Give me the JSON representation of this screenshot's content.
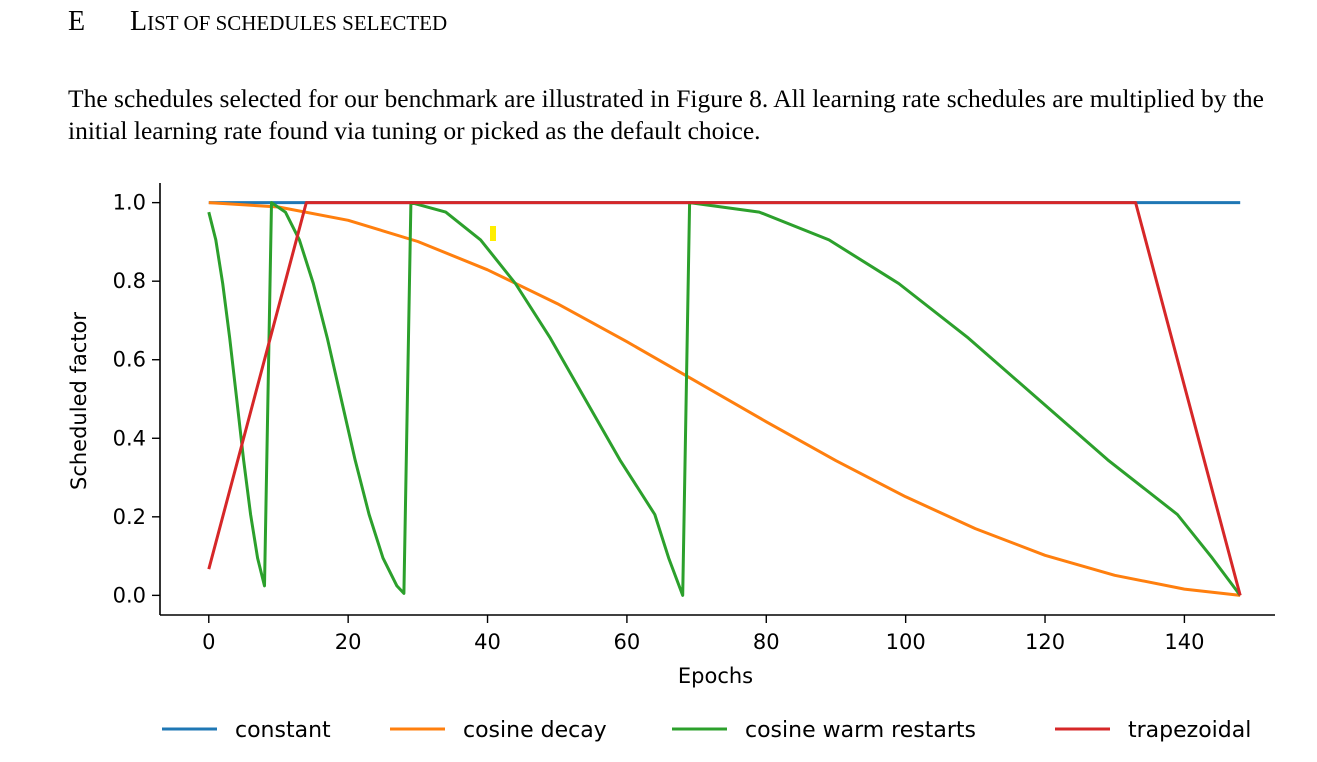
{
  "section": {
    "number": "E",
    "title_first": "L",
    "title_rest": "IST OF SCHEDULES SELECTED"
  },
  "paragraph": "The schedules selected for our benchmark are illustrated in Figure 8. All learning rate schedules are multiplied by the initial learning rate found via tuning or picked as the default choice.",
  "chart_data": {
    "type": "line",
    "xlabel": "Epochs",
    "ylabel": "Scheduled factor",
    "xlim": [
      -7,
      153
    ],
    "ylim": [
      -0.05,
      1.05
    ],
    "xticks": [
      0,
      20,
      40,
      60,
      80,
      100,
      120,
      140
    ],
    "yticks": [
      0.0,
      0.2,
      0.4,
      0.6,
      0.8,
      1.0
    ],
    "ytick_labels": [
      "0.0",
      "0.2",
      "0.4",
      "0.6",
      "0.8",
      "1.0"
    ],
    "grid": false,
    "legend_position": "bottom",
    "series": [
      {
        "name": "constant",
        "color": "#1f77b4",
        "points": [
          [
            0,
            1.0
          ],
          [
            148,
            1.0
          ]
        ]
      },
      {
        "name": "cosine decay",
        "color": "#ff7f0e",
        "points": [
          [
            0,
            1.0
          ],
          [
            10,
            0.989
          ],
          [
            20,
            0.955
          ],
          [
            30,
            0.901
          ],
          [
            40,
            0.829
          ],
          [
            50,
            0.743
          ],
          [
            60,
            0.646
          ],
          [
            70,
            0.544
          ],
          [
            80,
            0.442
          ],
          [
            90,
            0.343
          ],
          [
            100,
            0.251
          ],
          [
            110,
            0.17
          ],
          [
            120,
            0.102
          ],
          [
            130,
            0.051
          ],
          [
            140,
            0.016
          ],
          [
            148,
            0.0
          ]
        ]
      },
      {
        "name": "cosine warm restarts",
        "color": "#2ca02c",
        "points": [
          [
            0,
            0.976
          ],
          [
            1,
            0.905
          ],
          [
            2,
            0.794
          ],
          [
            3,
            0.655
          ],
          [
            4,
            0.5
          ],
          [
            5,
            0.345
          ],
          [
            6,
            0.206
          ],
          [
            7,
            0.095
          ],
          [
            8,
            0.024
          ],
          [
            9,
            1.0
          ],
          [
            11,
            0.976
          ],
          [
            13,
            0.905
          ],
          [
            15,
            0.794
          ],
          [
            17,
            0.655
          ],
          [
            19,
            0.5
          ],
          [
            21,
            0.345
          ],
          [
            23,
            0.206
          ],
          [
            25,
            0.095
          ],
          [
            27,
            0.024
          ],
          [
            28,
            0.005
          ],
          [
            29,
            1.0
          ],
          [
            34,
            0.976
          ],
          [
            39,
            0.905
          ],
          [
            44,
            0.794
          ],
          [
            49,
            0.655
          ],
          [
            54,
            0.5
          ],
          [
            59,
            0.345
          ],
          [
            64,
            0.206
          ],
          [
            66,
            0.095
          ],
          [
            68,
            0.0
          ],
          [
            69,
            1.0
          ],
          [
            79,
            0.976
          ],
          [
            89,
            0.905
          ],
          [
            99,
            0.794
          ],
          [
            109,
            0.655
          ],
          [
            119,
            0.5
          ],
          [
            129,
            0.345
          ],
          [
            139,
            0.206
          ],
          [
            144,
            0.095
          ],
          [
            148,
            0.0
          ]
        ]
      },
      {
        "name": "trapezoidal",
        "color": "#d62728",
        "points": [
          [
            0,
            0.067
          ],
          [
            14,
            1.0
          ],
          [
            133,
            1.0
          ],
          [
            148,
            0.0
          ]
        ]
      }
    ]
  },
  "marker": {
    "color": "#ffee00"
  }
}
